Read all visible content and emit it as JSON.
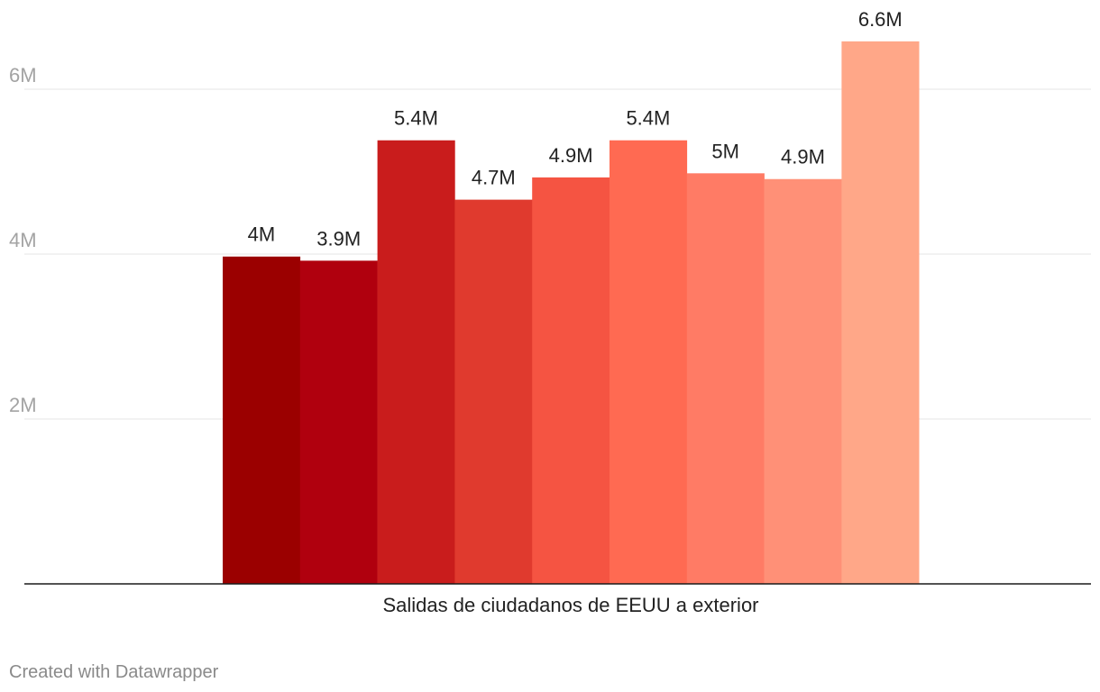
{
  "chart_data": {
    "type": "bar",
    "categories": [
      "Salidas de ciudadanos de EEUU a exterior"
    ],
    "series": [
      {
        "values": [
          3.97
        ],
        "label": "4M",
        "color": "#9b0000"
      },
      {
        "values": [
          3.92
        ],
        "label": "3.9M",
        "color": "#b0000e"
      },
      {
        "values": [
          5.38
        ],
        "label": "5.4M",
        "color": "#c91c1c"
      },
      {
        "values": [
          4.66
        ],
        "label": "4.7M",
        "color": "#e03a2e"
      },
      {
        "values": [
          4.93
        ],
        "label": "4.9M",
        "color": "#f55442"
      },
      {
        "values": [
          5.38
        ],
        "label": "5.4M",
        "color": "#ff6a52"
      },
      {
        "values": [
          4.98
        ],
        "label": "5M",
        "color": "#ff7b65"
      },
      {
        "values": [
          4.91
        ],
        "label": "4.9M",
        "color": "#ff9077"
      },
      {
        "values": [
          6.58
        ],
        "label": "6.6M",
        "color": "#ffa788"
      }
    ],
    "yticks": [
      {
        "value": 2,
        "label": "2M"
      },
      {
        "value": 4,
        "label": "4M"
      },
      {
        "value": 6,
        "label": "6M"
      }
    ],
    "ylim": [
      0,
      7
    ],
    "grid": true,
    "legend": "none"
  },
  "credit": "Created with Datawrapper"
}
